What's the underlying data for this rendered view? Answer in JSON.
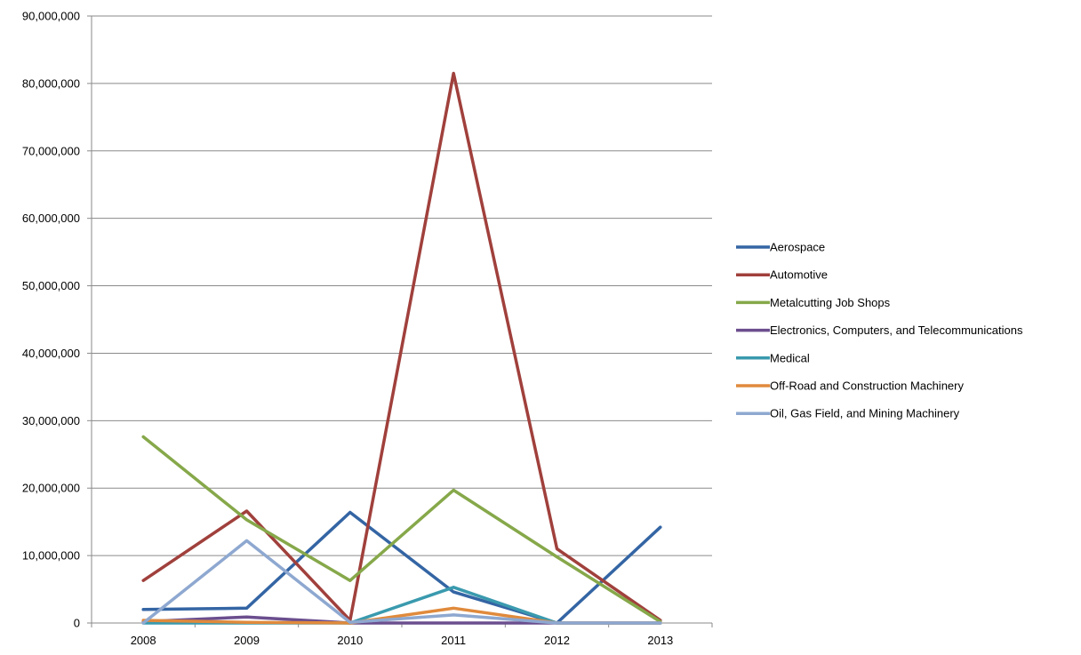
{
  "chart_data": {
    "type": "line",
    "title": "",
    "xlabel": "",
    "ylabel": "",
    "categories": [
      "2008",
      "2009",
      "2010",
      "2011",
      "2012",
      "2013"
    ],
    "ylim": [
      0,
      90000000
    ],
    "yticks": [
      0,
      10000000,
      20000000,
      30000000,
      40000000,
      50000000,
      60000000,
      70000000,
      80000000,
      90000000
    ],
    "ytick_labels": [
      "0",
      "10,000,000",
      "20,000,000",
      "30,000,000",
      "40,000,000",
      "50,000,000",
      "60,000,000",
      "70,000,000",
      "80,000,000",
      "90,000,000"
    ],
    "grid": "horizontal",
    "legend_position": "right",
    "series": [
      {
        "name": "Aerospace",
        "color": "#3465A4",
        "values": [
          2000000,
          2200000,
          16400000,
          4600000,
          0,
          14200000
        ]
      },
      {
        "name": "Automotive",
        "color": "#A0403C",
        "values": [
          6300000,
          16600000,
          400000,
          81500000,
          11000000,
          400000
        ]
      },
      {
        "name": "Metalcutting Job Shops",
        "color": "#86A84A",
        "values": [
          27600000,
          15300000,
          6300000,
          19700000,
          9800000,
          200000
        ]
      },
      {
        "name": "Electronics, Computers, and Telecommunications",
        "color": "#6B4E8E",
        "values": [
          200000,
          900000,
          0,
          0,
          0,
          0
        ]
      },
      {
        "name": "Medical",
        "color": "#3A9AAE",
        "values": [
          0,
          0,
          0,
          5300000,
          0,
          0
        ]
      },
      {
        "name": "Off-Road and Construction Machinery",
        "color": "#E08A3C",
        "values": [
          400000,
          100000,
          0,
          2200000,
          0,
          0
        ]
      },
      {
        "name": "Oil, Gas Field, and Mining Machinery",
        "color": "#8EA8D0",
        "values": [
          0,
          12200000,
          100000,
          1200000,
          0,
          0
        ]
      }
    ]
  }
}
